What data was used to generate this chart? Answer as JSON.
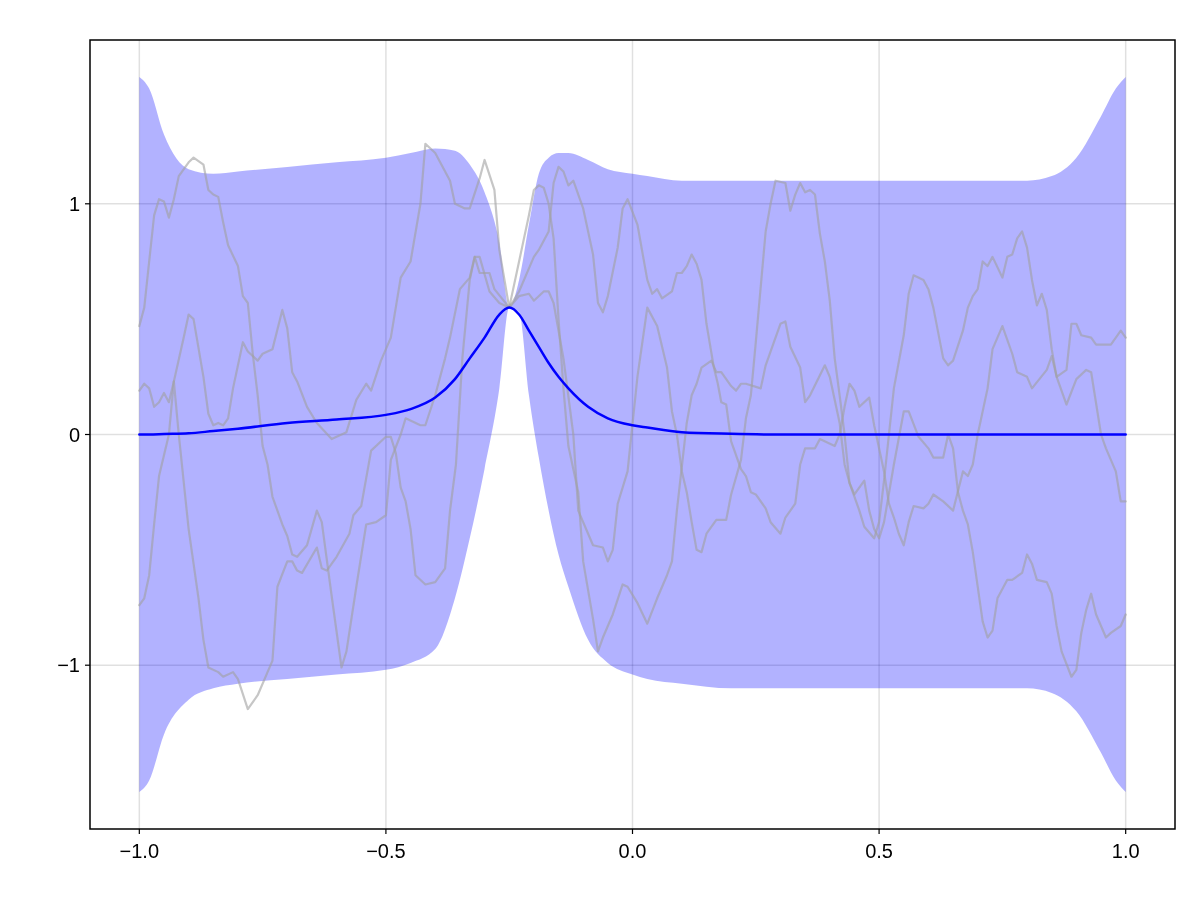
{
  "chart_data": {
    "type": "line",
    "xlim": [
      -1.1,
      1.1
    ],
    "ylim": [
      -1.71,
      1.71
    ],
    "xticks": [
      {
        "value": -1,
        "label": "−1.0"
      },
      {
        "value": -0.5,
        "label": "−0.5"
      },
      {
        "value": 0,
        "label": "0.0"
      },
      {
        "value": 0.5,
        "label": "0.5"
      },
      {
        "value": 1,
        "label": "1.0"
      }
    ],
    "yticks": [
      {
        "value": -1,
        "label": "−1"
      },
      0,
      1
    ],
    "grid": true,
    "line_style": "solid",
    "marker": "none",
    "series": [
      {
        "color": "#0000ff",
        "x": [
          -1,
          -0.98,
          -0.95,
          -0.9,
          -0.85,
          -0.8,
          -0.7,
          -0.6,
          -0.5,
          -0.45,
          -0.4,
          -0.36,
          -0.33,
          -0.3,
          -0.27,
          -0.25,
          -0.23,
          -0.21,
          -0.19,
          -0.17,
          -0.15,
          -0.13,
          -0.09,
          -0.05,
          0,
          0.03,
          0.1,
          0.2,
          0.3,
          0.5,
          0.8,
          0.85,
          0.9,
          0.95,
          0.98,
          1
        ],
        "values": [
          0,
          0,
          0.002,
          0.005,
          0.015,
          0.025,
          0.05,
          0.065,
          0.085,
          0.11,
          0.16,
          0.24,
          0.33,
          0.42,
          0.52,
          0.55,
          0.52,
          0.45,
          0.38,
          0.31,
          0.25,
          0.2,
          0.12,
          0.07,
          0.04,
          0.03,
          0.01,
          0.003,
          0,
          0,
          0,
          0,
          0,
          0,
          0,
          0
        ],
        "upper": [
          1.55,
          1.5,
          1.3,
          1.15,
          1.13,
          1.14,
          1.16,
          1.18,
          1.2,
          1.22,
          1.24,
          1.23,
          1.17,
          1.05,
          0.83,
          0.55,
          0.67,
          0.91,
          1.13,
          1.2,
          1.22,
          1.22,
          1.19,
          1.15,
          1.13,
          1.12,
          1.1,
          1.1,
          1.1,
          1.1,
          1.1,
          1.12,
          1.2,
          1.38,
          1.5,
          1.55
        ],
        "lower": [
          -1.55,
          -1.5,
          -1.3,
          -1.15,
          -1.1,
          -1.08,
          -1.06,
          -1.04,
          -1.02,
          -0.99,
          -0.93,
          -0.71,
          -0.45,
          -0.15,
          0.2,
          0.55,
          0.53,
          0.17,
          -0.1,
          -0.33,
          -0.52,
          -0.66,
          -0.89,
          -0.99,
          -1.04,
          -1.06,
          -1.08,
          -1.1,
          -1.1,
          -1.1,
          -1.1,
          -1.12,
          -1.2,
          -1.38,
          -1.5,
          -1.55
        ]
      },
      {
        "color": "#a0a0a0",
        "x": [
          -1,
          -0.99,
          -0.98,
          -0.97,
          -0.96,
          -0.95,
          -0.94,
          -0.93,
          -0.92,
          -0.9,
          -0.89,
          -0.87,
          -0.86,
          -0.85,
          -0.84,
          -0.83,
          -0.82,
          -0.8,
          -0.79,
          -0.78,
          -0.77,
          -0.76,
          -0.75,
          -0.74,
          -0.73,
          -0.71,
          -0.7,
          -0.69,
          -0.68,
          -0.66,
          -0.64,
          -0.63,
          -0.61,
          -0.59,
          -0.58,
          -0.56,
          -0.54,
          -0.52,
          -0.5,
          -0.49,
          -0.47,
          -0.46,
          -0.43,
          -0.42,
          -0.4,
          -0.38,
          -0.37,
          -0.35,
          -0.33,
          -0.32,
          -0.31,
          -0.29,
          -0.28,
          -0.25,
          -0.23,
          -0.21,
          -0.2,
          -0.19,
          -0.18,
          -0.17,
          -0.16,
          -0.15,
          -0.14,
          -0.13,
          -0.11,
          -0.1,
          -0.08,
          -0.07,
          -0.06,
          -0.04,
          -0.02,
          -0.01,
          0.01,
          0.03,
          0.05,
          0.07,
          0.08,
          0.09,
          0.11,
          0.12,
          0.13,
          0.14,
          0.16,
          0.17,
          0.18,
          0.2,
          0.21,
          0.22,
          0.23,
          0.26,
          0.27,
          0.29,
          0.3,
          0.31,
          0.32,
          0.34,
          0.35,
          0.36,
          0.39,
          0.4,
          0.42,
          0.43,
          0.44,
          0.46,
          0.47,
          0.49,
          0.5,
          0.51,
          0.53,
          0.55,
          0.56,
          0.57,
          0.59,
          0.6,
          0.61,
          0.63,
          0.64,
          0.65,
          0.67,
          0.68,
          0.69,
          0.7,
          0.71,
          0.72,
          0.73,
          0.75,
          0.76,
          0.77,
          0.78,
          0.79,
          0.8,
          0.81,
          0.82,
          0.83,
          0.84,
          0.85,
          0.86,
          0.88,
          0.89,
          0.9,
          0.91,
          0.93,
          0.94,
          0.96,
          0.97,
          0.99,
          1
        ],
        "values": [
          0.47,
          0.55,
          0.75,
          0.95,
          1.02,
          1.01,
          0.94,
          1.02,
          1.12,
          1.18,
          1.2,
          1.17,
          1.06,
          1.04,
          1.03,
          0.92,
          0.82,
          0.73,
          0.6,
          0.57,
          0.35,
          0.17,
          -0.05,
          -0.13,
          -0.27,
          -0.39,
          -0.44,
          -0.52,
          -0.53,
          -0.48,
          -0.33,
          -0.38,
          -0.7,
          -1.01,
          -0.94,
          -0.66,
          -0.39,
          -0.38,
          -0.35,
          -0.11,
          0,
          0.07,
          0.04,
          0.04,
          0.17,
          0.33,
          0.42,
          0.63,
          0.68,
          0.77,
          0.7,
          0.7,
          0.63,
          0.55,
          0.75,
          0.95,
          1.06,
          1.08,
          1.07,
          1,
          0.85,
          0.5,
          0.2,
          -0.05,
          -0.25,
          -0.55,
          -0.8,
          -0.94,
          -0.88,
          -0.78,
          -0.65,
          -0.66,
          -0.73,
          -0.82,
          -0.71,
          -0.61,
          -0.55,
          -0.33,
          0.05,
          0.17,
          0.22,
          0.29,
          0.32,
          0.27,
          0.27,
          0.21,
          0.19,
          0.22,
          0.22,
          0.2,
          0.3,
          0.42,
          0.48,
          0.49,
          0.38,
          0.29,
          0.14,
          0.17,
          0.3,
          0.25,
          0.05,
          -0.13,
          -0.21,
          -0.33,
          -0.4,
          -0.45,
          -0.38,
          -0.2,
          0.2,
          0.43,
          0.61,
          0.69,
          0.67,
          0.63,
          0.55,
          0.33,
          0.3,
          0.32,
          0.45,
          0.55,
          0.6,
          0.63,
          0.75,
          0.73,
          0.77,
          0.68,
          0.77,
          0.78,
          0.85,
          0.88,
          0.81,
          0.67,
          0.56,
          0.61,
          0.54,
          0.37,
          0.25,
          0.28,
          0.48,
          0.48,
          0.43,
          0.42,
          0.39,
          0.39,
          0.39,
          0.45,
          0.42
        ]
      },
      {
        "color": "#a0a0a0",
        "x": [
          -1,
          -0.99,
          -0.98,
          -0.97,
          -0.96,
          -0.95,
          -0.94,
          -0.93,
          -0.91,
          -0.9,
          -0.89,
          -0.87,
          -0.86,
          -0.85,
          -0.84,
          -0.83,
          -0.82,
          -0.81,
          -0.79,
          -0.78,
          -0.76,
          -0.75,
          -0.73,
          -0.71,
          -0.7,
          -0.69,
          -0.68,
          -0.66,
          -0.64,
          -0.61,
          -0.58,
          -0.56,
          -0.54,
          -0.53,
          -0.51,
          -0.49,
          -0.47,
          -0.45,
          -0.43,
          -0.42,
          -0.4,
          -0.39,
          -0.37,
          -0.36,
          -0.34,
          -0.33,
          -0.31,
          -0.3,
          -0.28,
          -0.27,
          -0.25,
          -0.23,
          -0.21,
          -0.2,
          -0.19,
          -0.17,
          -0.16,
          -0.15,
          -0.14,
          -0.13,
          -0.12,
          -0.1,
          -0.08,
          -0.07,
          -0.06,
          -0.05,
          -0.03,
          -0.02,
          -0.01,
          0.01,
          0.03,
          0.04,
          0.05,
          0.06,
          0.08,
          0.09,
          0.1,
          0.11,
          0.12,
          0.13,
          0.14,
          0.15,
          0.165,
          0.173,
          0.18,
          0.19,
          0.2,
          0.22,
          0.23,
          0.24,
          0.25,
          0.27,
          0.28,
          0.3,
          0.31,
          0.33,
          0.34,
          0.35,
          0.37,
          0.38,
          0.41,
          0.42,
          0.43,
          0.44,
          0.45,
          0.46,
          0.48,
          0.49,
          0.51,
          0.52,
          0.53,
          0.54,
          0.55,
          0.56,
          0.57,
          0.59,
          0.6,
          0.61,
          0.63,
          0.65,
          0.67,
          0.68,
          0.69,
          0.7,
          0.72,
          0.73,
          0.75,
          0.77,
          0.78,
          0.8,
          0.81,
          0.84,
          0.85,
          0.86,
          0.88,
          0.9,
          0.92,
          0.93,
          0.95,
          0.96,
          0.98,
          0.99,
          1
        ],
        "values": [
          0.19,
          0.22,
          0.2,
          0.12,
          0.14,
          0.18,
          0.14,
          0.23,
          0.42,
          0.52,
          0.5,
          0.25,
          0.09,
          0.04,
          0.05,
          0.04,
          0.07,
          0.2,
          0.4,
          0.36,
          0.32,
          0.35,
          0.37,
          0.54,
          0.46,
          0.27,
          0.23,
          0.12,
          0.05,
          -0.02,
          0.01,
          0.15,
          0.22,
          0.19,
          0.32,
          0.42,
          0.68,
          0.75,
          1,
          1.26,
          1.22,
          1.18,
          1.1,
          1,
          0.98,
          0.98,
          1.11,
          1.19,
          1.06,
          0.8,
          0.55,
          0.62,
          0.72,
          0.77,
          0.8,
          0.88,
          1.09,
          1.16,
          1.14,
          1.08,
          1.1,
          0.98,
          0.78,
          0.57,
          0.53,
          0.6,
          0.81,
          0.98,
          1.02,
          0.91,
          0.67,
          0.61,
          0.63,
          0.59,
          0.62,
          0.7,
          0.7,
          0.73,
          0.78,
          0.74,
          0.67,
          0.48,
          0.29,
          0.22,
          0.14,
          0.13,
          -0.03,
          -0.15,
          -0.18,
          -0.25,
          -0.26,
          -0.32,
          -0.38,
          -0.43,
          -0.36,
          -0.3,
          -0.13,
          -0.06,
          -0.06,
          -0.02,
          -0.05,
          0,
          0.12,
          0.22,
          0.19,
          0.12,
          0.16,
          0.04,
          -0.16,
          -0.3,
          -0.36,
          -0.43,
          -0.48,
          -0.38,
          -0.31,
          -0.32,
          -0.3,
          -0.26,
          -0.29,
          -0.33,
          -0.16,
          -0.18,
          -0.13,
          0,
          0.2,
          0.37,
          0.47,
          0.35,
          0.27,
          0.25,
          0.2,
          0.28,
          0.34,
          0.25,
          0.13,
          0.24,
          0.28,
          0.27,
          0,
          -0.06,
          -0.16,
          -0.29,
          -0.29
        ]
      },
      {
        "color": "#a0a0a0",
        "x": [
          -1,
          -0.99,
          -0.98,
          -0.97,
          -0.96,
          -0.94,
          -0.93,
          -0.92,
          -0.9,
          -0.88,
          -0.87,
          -0.86,
          -0.84,
          -0.83,
          -0.81,
          -0.8,
          -0.78,
          -0.76,
          -0.74,
          -0.73,
          -0.72,
          -0.7,
          -0.69,
          -0.68,
          -0.67,
          -0.64,
          -0.63,
          -0.62,
          -0.6,
          -0.574,
          -0.566,
          -0.55,
          -0.53,
          -0.5,
          -0.49,
          -0.48,
          -0.47,
          -0.46,
          -0.45,
          -0.44,
          -0.42,
          -0.4,
          -0.38,
          -0.37,
          -0.358,
          -0.345,
          -0.33,
          -0.32,
          -0.31,
          -0.29,
          -0.27,
          -0.25,
          -0.23,
          -0.21,
          -0.2,
          -0.18,
          -0.17,
          -0.16,
          -0.14,
          -0.12,
          -0.11,
          -0.09,
          -0.08,
          -0.06,
          -0.05,
          -0.04,
          -0.03,
          -0.01,
          0.01,
          0.03,
          0.05,
          0.07,
          0.08,
          0.09,
          0.1,
          0.11,
          0.12,
          0.13,
          0.14,
          0.15,
          0.17,
          0.19,
          0.2,
          0.22,
          0.23,
          0.24,
          0.25,
          0.27,
          0.28,
          0.29,
          0.31,
          0.32,
          0.33,
          0.34,
          0.35,
          0.36,
          0.37,
          0.38,
          0.39,
          0.4,
          0.41,
          0.42,
          0.43,
          0.44,
          0.45,
          0.47,
          0.48,
          0.49,
          0.5,
          0.51,
          0.53,
          0.55,
          0.56,
          0.58,
          0.6,
          0.61,
          0.63,
          0.64,
          0.65,
          0.66,
          0.67,
          0.68,
          0.69,
          0.71,
          0.72,
          0.73,
          0.74,
          0.76,
          0.77,
          0.79,
          0.8,
          0.81,
          0.82,
          0.84,
          0.85,
          0.86,
          0.87,
          0.89,
          0.9,
          0.91,
          0.92,
          0.93,
          0.94,
          0.96,
          0.97,
          0.99,
          1
        ],
        "values": [
          -0.74,
          -0.71,
          -0.61,
          -0.39,
          -0.18,
          0,
          0.23,
          0,
          -0.41,
          -0.71,
          -0.89,
          -1.01,
          -1.03,
          -1.05,
          -1.03,
          -1.06,
          -1.19,
          -1.13,
          -1.03,
          -0.98,
          -0.66,
          -0.55,
          -0.55,
          -0.59,
          -0.6,
          -0.49,
          -0.58,
          -0.59,
          -0.53,
          -0.43,
          -0.35,
          -0.31,
          -0.07,
          -0.01,
          -0.01,
          -0.08,
          -0.23,
          -0.29,
          -0.41,
          -0.61,
          -0.65,
          -0.64,
          -0.58,
          -0.33,
          -0.13,
          0.33,
          0.67,
          0.77,
          0.77,
          0.62,
          0.57,
          0.55,
          0.6,
          0.61,
          0.58,
          0.62,
          0.62,
          0.57,
          0.33,
          0,
          -0.33,
          -0.43,
          -0.48,
          -0.49,
          -0.55,
          -0.5,
          -0.3,
          -0.16,
          0.25,
          0.55,
          0.47,
          0.29,
          0.1,
          0,
          -0.16,
          -0.25,
          -0.38,
          -0.5,
          -0.51,
          -0.43,
          -0.37,
          -0.37,
          -0.26,
          -0.11,
          0.07,
          0.17,
          0.4,
          0.88,
          1,
          1.1,
          1.09,
          0.97,
          1.04,
          1.09,
          1.05,
          1.06,
          1.04,
          0.87,
          0.75,
          0.58,
          0.33,
          0.17,
          0,
          -0.21,
          -0.26,
          -0.2,
          -0.33,
          -0.41,
          -0.45,
          -0.38,
          -0.13,
          0.1,
          0.1,
          -0.01,
          -0.06,
          -0.1,
          -0.1,
          0,
          -0.06,
          -0.25,
          -0.33,
          -0.39,
          -0.51,
          -0.81,
          -0.88,
          -0.85,
          -0.71,
          -0.63,
          -0.63,
          -0.6,
          -0.52,
          -0.56,
          -0.63,
          -0.64,
          -0.69,
          -0.83,
          -0.94,
          -1.05,
          -1.02,
          -0.86,
          -0.76,
          -0.69,
          -0.78,
          -0.88,
          -0.86,
          -0.83,
          -0.78
        ]
      }
    ]
  }
}
